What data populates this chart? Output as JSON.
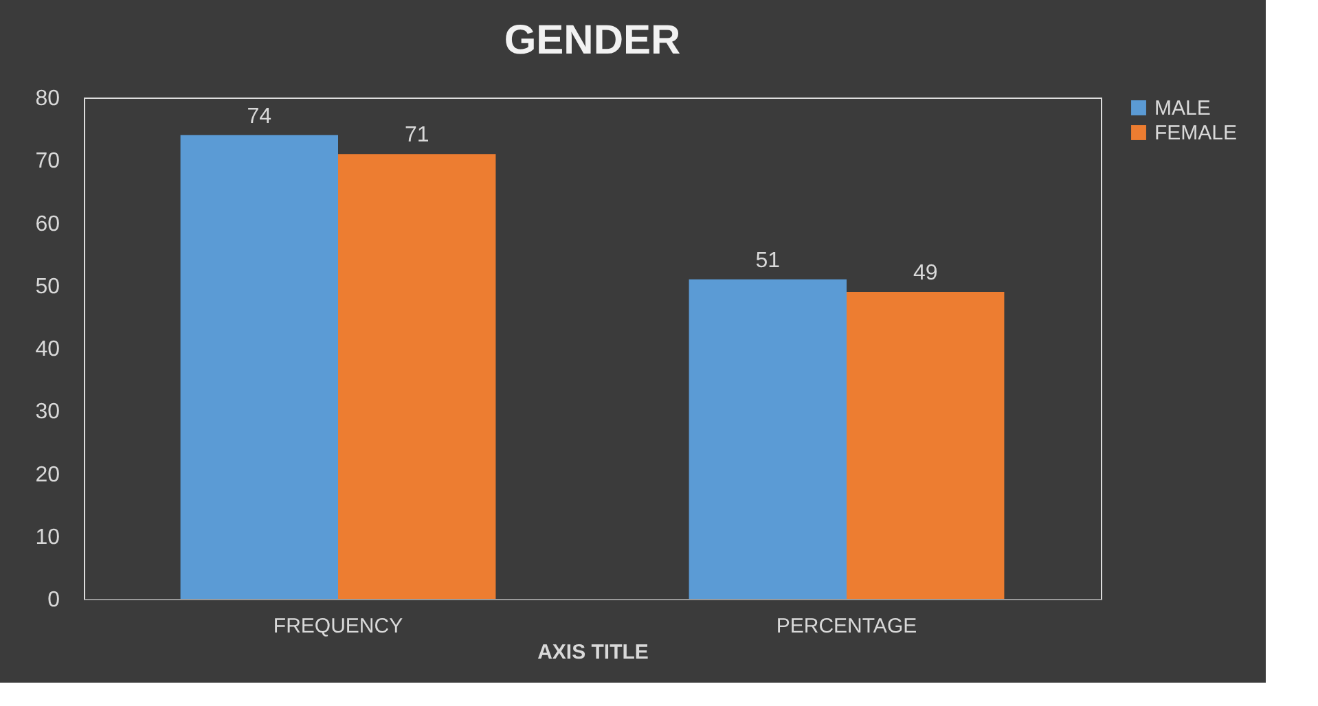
{
  "chart_data": {
    "type": "bar",
    "title": "GENDER",
    "xlabel": "AXIS TITLE",
    "categories": [
      "FREQUENCY",
      "PERCENTAGE"
    ],
    "series": [
      {
        "name": "MALE",
        "color": "#5b9bd5",
        "values": [
          74,
          51
        ]
      },
      {
        "name": "FEMALE",
        "color": "#ed7d31",
        "values": [
          71,
          49
        ]
      }
    ],
    "ylim": [
      0,
      80
    ],
    "yticks": [
      0,
      10,
      20,
      30,
      40,
      50,
      60,
      70,
      80
    ],
    "grid": false,
    "legend": "right",
    "data_labels": true
  }
}
